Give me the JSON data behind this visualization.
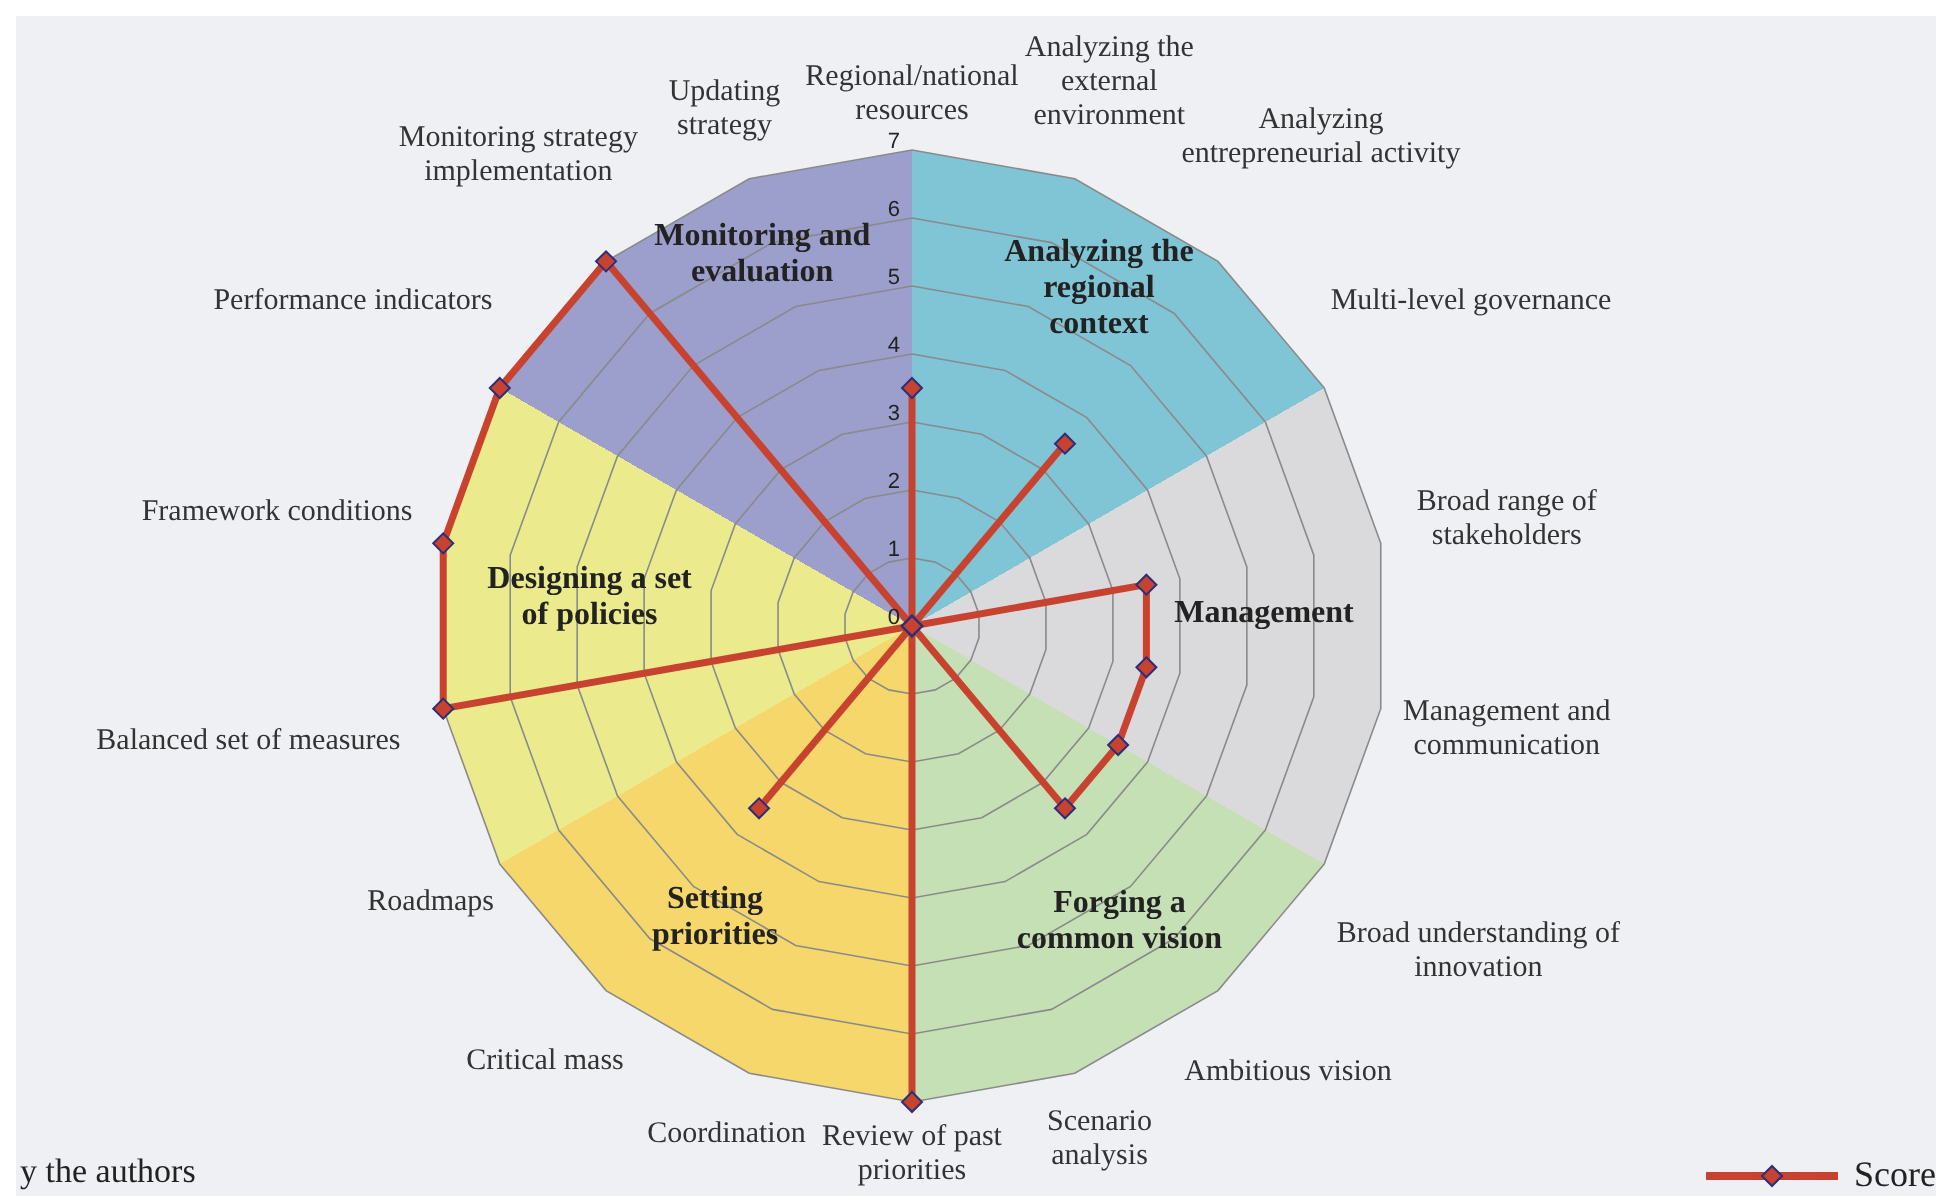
{
  "chart_data": {
    "type": "radar",
    "categories": [
      "Regional/national resources",
      "Analyzing the external environment",
      "Analyzing entrepreneurial activity",
      "Multi-level governance",
      "Broad range of stakeholders",
      "Management and communication",
      "Broad understanding of innovation",
      "Ambitious vision",
      "Scenario analysis",
      "Review of past priorities",
      "Coordination",
      "Critical mass",
      "Roadmaps",
      "Balanced set of measures",
      "Framework conditions",
      "Performance indicators",
      "Monitoring strategy implementation",
      "Updating strategy"
    ],
    "series": [
      {
        "name": "Score",
        "color": "#c8432f",
        "values": [
          3.5,
          0,
          3.5,
          0,
          3.5,
          3.5,
          3.5,
          3.5,
          0,
          7,
          0,
          3.5,
          0,
          7,
          7,
          7,
          7,
          0
        ]
      }
    ],
    "ylim": [
      0,
      7
    ],
    "yticks": [
      0,
      1,
      2,
      3,
      4,
      5,
      6,
      7
    ],
    "grid": true,
    "marker": "diamond",
    "legend": "bottom right",
    "annotations": [
      "Analyzing the regional context",
      "Management",
      "Forging a common vision",
      "Setting priorities",
      "Designing a set of policies",
      "Monitoring and evaluation",
      "y the authors"
    ]
  }
}
